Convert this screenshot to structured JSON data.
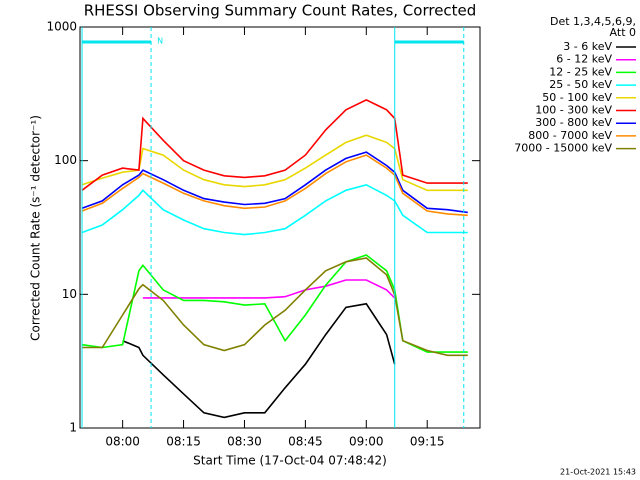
{
  "chart_data": {
    "type": "line",
    "title": "RHESSI Observing Summary Count Rates, Corrected",
    "x_label": "Start Time (17-Oct-04 07:48:42)",
    "y_label": "Corrected Count Rate (s⁻¹ detector⁻¹)",
    "legend_header": [
      "Det 1,3,4,5,6,9,",
      "Att 0"
    ],
    "footer": "21-Oct-2021 15:43",
    "log_y": true,
    "xlim": [
      "07:49:30",
      "09:28:00"
    ],
    "xticks": [
      "08:00",
      "08:15",
      "08:30",
      "08:45",
      "09:00",
      "09:15"
    ],
    "ylim": [
      1,
      1000
    ],
    "yticks": [
      1,
      10,
      100,
      1000
    ],
    "annotation_color": "#00e5ee",
    "vlines": [
      {
        "x": "07:50",
        "style": "solid"
      },
      {
        "x": "08:07",
        "style": "dashed"
      },
      {
        "x": "09:07",
        "style": "solid"
      },
      {
        "x": "09:24",
        "style": "dashed"
      }
    ],
    "bars": [
      {
        "start": "07:50",
        "end": "08:07",
        "label": "N"
      },
      {
        "start": "09:07",
        "end": "09:24"
      }
    ],
    "x": [
      "07:50",
      "07:55",
      "08:00",
      "08:04",
      "08:05",
      "08:10",
      "08:15",
      "08:20",
      "08:25",
      "08:30",
      "08:35",
      "08:40",
      "08:45",
      "08:50",
      "08:55",
      "09:00",
      "09:05",
      "09:07",
      "09:09",
      "09:15",
      "09:20",
      "09:25"
    ],
    "series": [
      {
        "name": "3 - 6 keV",
        "color": "#000000",
        "values": [
          null,
          null,
          4.5,
          4.0,
          3.5,
          2.5,
          1.8,
          1.3,
          1.2,
          1.3,
          1.3,
          2,
          3,
          5,
          8,
          8.5,
          5,
          3,
          null,
          null,
          null,
          null
        ]
      },
      {
        "name": "6 - 12 keV",
        "color": "#ff00ff",
        "values": [
          null,
          null,
          null,
          null,
          9.4,
          9.4,
          9.4,
          9.4,
          9.4,
          9.4,
          9.4,
          9.6,
          10.8,
          11.5,
          12.8,
          12.8,
          10.8,
          9.4,
          null,
          null,
          null,
          null
        ]
      },
      {
        "name": "12 - 25 keV",
        "color": "#00ff00",
        "values": [
          4.2,
          4.0,
          4.2,
          15,
          16.5,
          10.8,
          9,
          9,
          8.8,
          8.3,
          8.5,
          4.5,
          7,
          11.7,
          17.5,
          19.7,
          15,
          10.8,
          4.5,
          3.7,
          3.7,
          3.7
        ]
      },
      {
        "name": "25 - 50 keV",
        "color": "#00ffff",
        "values": [
          29,
          33,
          43,
          55,
          60,
          43,
          36,
          31,
          29,
          28,
          29,
          31,
          39,
          50,
          60,
          66,
          55,
          50,
          39,
          29,
          29,
          29
        ]
      },
      {
        "name": "50 - 100 keV",
        "color": "#e8d800",
        "values": [
          66,
          74,
          82,
          85,
          123,
          110,
          85,
          72,
          66,
          64,
          66,
          72,
          88,
          110,
          137,
          155,
          137,
          123,
          72,
          60,
          60,
          60
        ]
      },
      {
        "name": "100 - 300 keV",
        "color": "#ff0000",
        "values": [
          60,
          78,
          88,
          85,
          207,
          142,
          100,
          85,
          77,
          75,
          77,
          85,
          110,
          170,
          240,
          285,
          240,
          207,
          78,
          68,
          68,
          68
        ]
      },
      {
        "name": "300 - 800 keV",
        "color": "#0000ff",
        "values": [
          44,
          50,
          66,
          78,
          85,
          72,
          60,
          52,
          49,
          47,
          48,
          52,
          66,
          85,
          104,
          116,
          92,
          82,
          60,
          44,
          43,
          41
        ]
      },
      {
        "name": "800 - 7000 keV",
        "color": "#ff8c00",
        "values": [
          42,
          48,
          62,
          75,
          80,
          68,
          57,
          50,
          46,
          44,
          45,
          50,
          62,
          80,
          98,
          110,
          88,
          78,
          57,
          42,
          40,
          39
        ]
      },
      {
        "name": "7000 - 15000 keV",
        "color": "#808000",
        "values": [
          4.0,
          4.0,
          7,
          11,
          11.8,
          9,
          5.9,
          4.2,
          3.8,
          4.2,
          5.9,
          7.6,
          10.8,
          15,
          17.5,
          18.7,
          14,
          9.9,
          4.5,
          3.8,
          3.5,
          3.5
        ]
      }
    ]
  }
}
